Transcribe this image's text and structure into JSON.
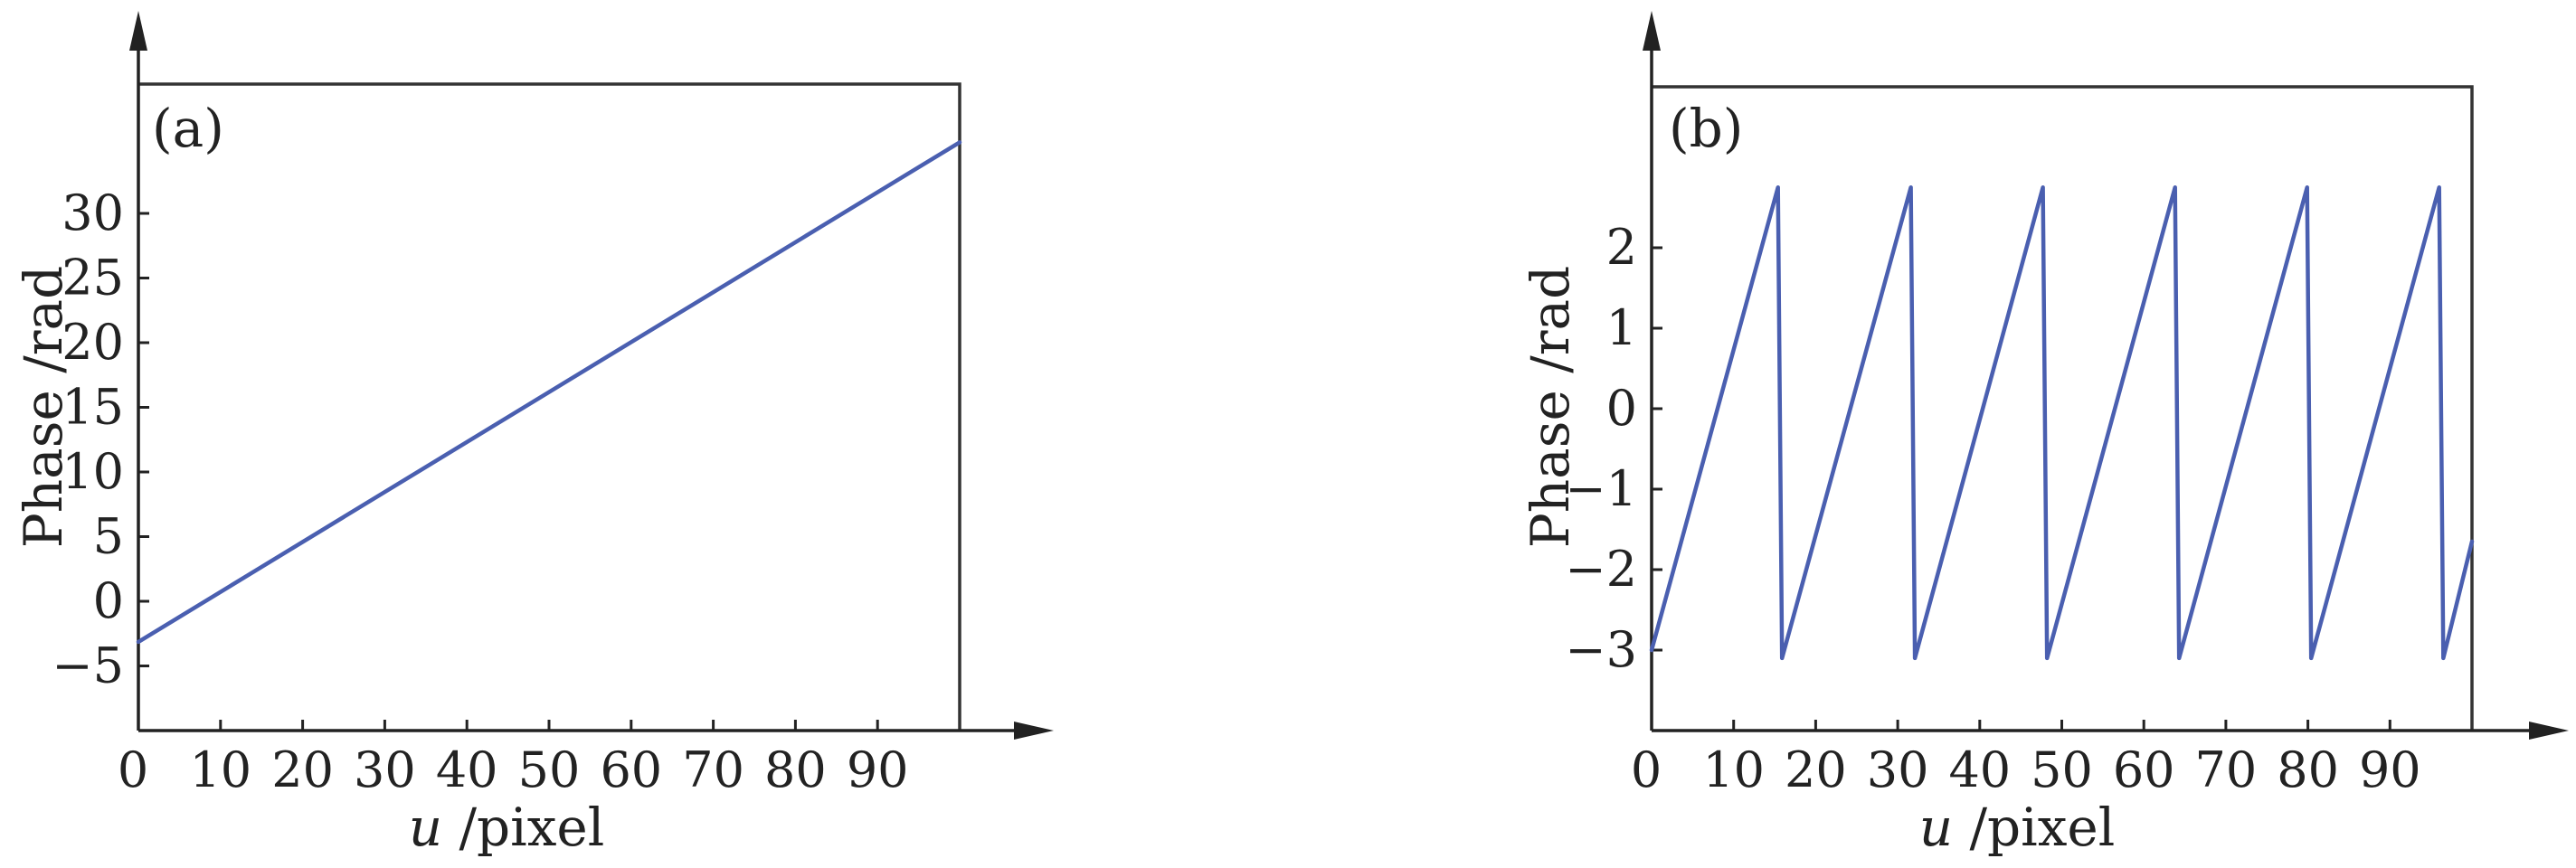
{
  "chart_data": [
    {
      "type": "line",
      "panel_label": "(a)",
      "xlabel_var": "u",
      "xlabel_unit": " /pixel",
      "ylabel": "Phase /rad",
      "x_ticks": [
        0,
        10,
        20,
        30,
        40,
        50,
        60,
        70,
        80,
        90
      ],
      "y_ticks": [
        -5,
        0,
        5,
        10,
        15,
        20,
        25,
        30
      ],
      "y_tick_labels": [
        "−5",
        "0",
        "5",
        "10",
        "15",
        "20",
        "25",
        "30"
      ],
      "xlim": [
        0,
        100
      ],
      "ylim": [
        -10,
        40
      ],
      "line_color": "#4a5fb0",
      "series": [
        {
          "x": [
            0,
            100
          ],
          "y": [
            -3.14,
            35.5
          ]
        }
      ]
    },
    {
      "type": "line",
      "panel_label": "(b)",
      "xlabel_var": "u",
      "xlabel_unit": " /pixel",
      "ylabel": "Phase /rad",
      "x_ticks": [
        0,
        10,
        20,
        30,
        40,
        50,
        60,
        70,
        80,
        90
      ],
      "y_ticks": [
        -3,
        -2,
        -1,
        0,
        1,
        2
      ],
      "y_tick_labels": [
        "−3",
        "−2",
        "−1",
        "0",
        "1",
        "2"
      ],
      "xlim": [
        0,
        100
      ],
      "ylim": [
        -4,
        4
      ],
      "line_color": "#4a5fb0",
      "series": [
        {
          "x": [
            0,
            15.4,
            15.9,
            31.6,
            32.1,
            47.7,
            48.2,
            63.8,
            64.3,
            79.9,
            80.4,
            96.0,
            96.5,
            100
          ],
          "y": [
            -3.0,
            2.75,
            -3.1,
            2.75,
            -3.1,
            2.75,
            -3.1,
            2.75,
            -3.1,
            2.75,
            -3.1,
            2.75,
            -3.1,
            -1.65
          ]
        }
      ]
    }
  ]
}
